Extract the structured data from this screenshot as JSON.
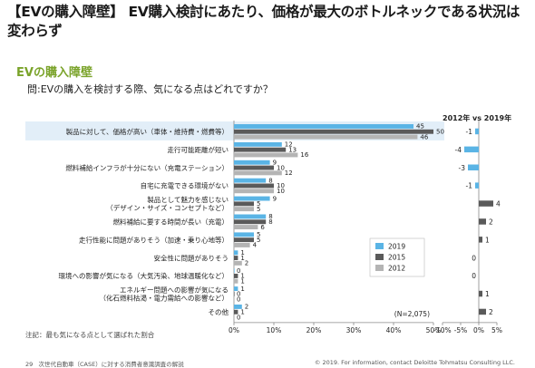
{
  "header": {
    "title": "【EVの購入障壁】 EV購入検討にあたり、価格が最大のボトルネックである状況は変わらず",
    "section": "EVの購入障壁",
    "question": "問:EVの購入を検討する際、気になる点はどれですか？"
  },
  "right_panel": {
    "title": "2012年 vs 2019年"
  },
  "note": "(N=2,075)",
  "footnote": "注記：最も気になる点として選ばれた割合",
  "footer": {
    "page": "29",
    "doc": "次世代自動車（CASE）に対する消費者意識調査の解説",
    "copyright": "© 2019. For information, contact Deloitte Tohmatsu Consulting LLC."
  },
  "colors": {
    "s2019": "#5ab4e5",
    "s2015": "#5a5a5a",
    "s2012": "#b4b4b4",
    "highlight": "#e2eef8"
  },
  "chart_data": [
    {
      "type": "bar",
      "orientation": "horizontal",
      "categories": [
        [
          "製品に対して、価格が高い（車体・維持費・燃費等）"
        ],
        [
          "走行可能距離が短い"
        ],
        [
          "燃料補給インフラが十分にない（充電ステーション）"
        ],
        [
          "自宅に充電できる環境がない"
        ],
        [
          "製品として魅力を感じない",
          "（デザイン・サイズ・コンセプトなど）"
        ],
        [
          "燃料補給に要する時間が長い（充電）"
        ],
        [
          "走行性能に問題がありそう（加速・乗り心地等）"
        ],
        [
          "安全性に問題がありそう"
        ],
        [
          "環境への影響が気になる（大気汚染、地球温暖化など）"
        ],
        [
          "エネルギー問題への影響が気になる",
          "（化石燃料枯渇・電力需給への影響など）"
        ],
        [
          "その他"
        ]
      ],
      "series": [
        {
          "name": "2019",
          "values": [
            45,
            12,
            9,
            8,
            9,
            8,
            5,
            1,
            0,
            1,
            2
          ]
        },
        {
          "name": "2015",
          "values": [
            50,
            13,
            10,
            10,
            5,
            8,
            5,
            1,
            1,
            0,
            1
          ]
        },
        {
          "name": "2012",
          "values": [
            46,
            16,
            12,
            10,
            5,
            6,
            4,
            2,
            1,
            0,
            0
          ]
        }
      ],
      "xlim": [
        0,
        50
      ],
      "xticks": [
        "0%",
        "10%",
        "20%",
        "30%",
        "40%",
        "50%"
      ],
      "highlight_category_index": 0
    },
    {
      "type": "bar",
      "orientation": "horizontal",
      "title": "2012年 vs 2019年",
      "values": [
        -1,
        -4,
        -3,
        -1,
        4,
        2,
        1,
        0,
        0,
        1,
        2
      ],
      "xlim": [
        -10,
        5
      ],
      "xticks": [
        "-10%",
        "-5%",
        "0%",
        "5%"
      ],
      "colors": {
        "negative": "#5ab4e5",
        "positive": "#5a5a5a"
      }
    }
  ]
}
